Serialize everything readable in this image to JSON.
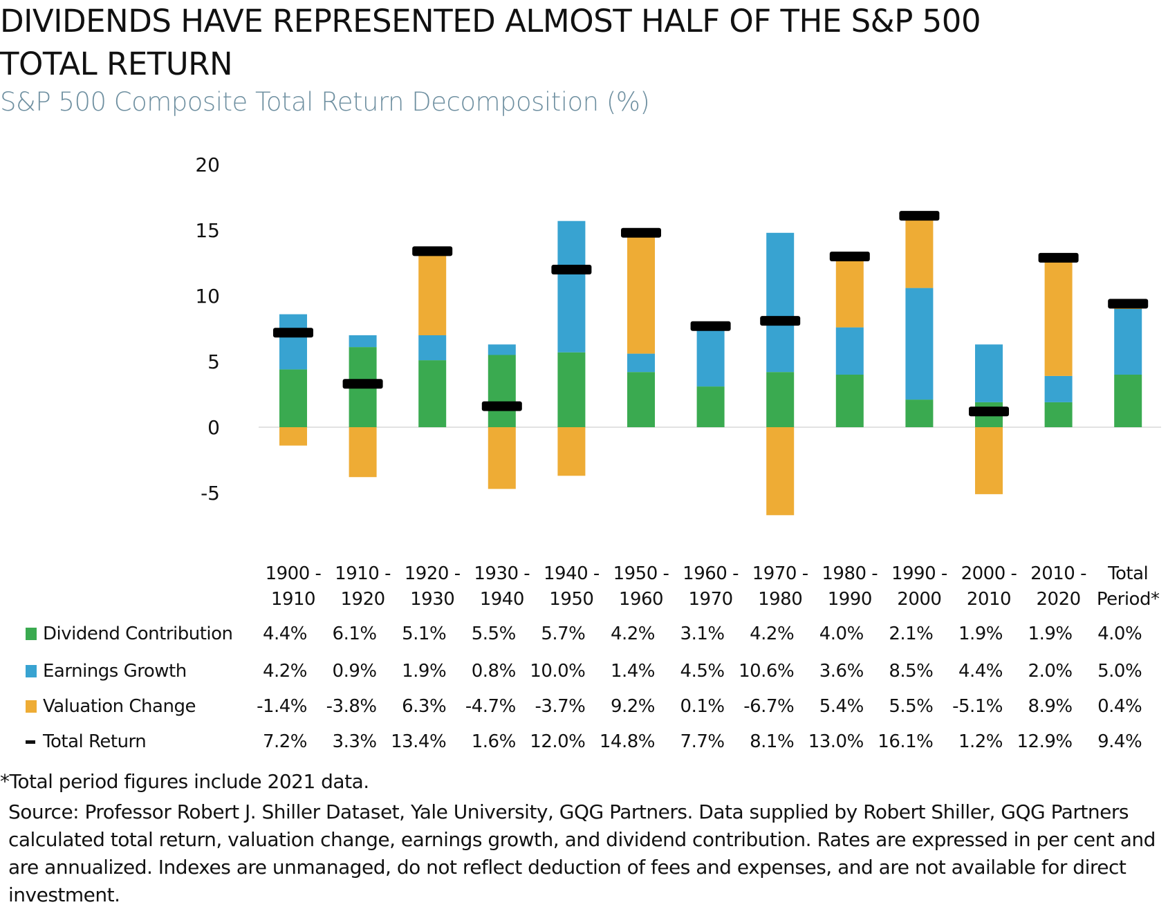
{
  "chart_data": {
    "type": "bar",
    "stacked": true,
    "title_line1": "DIVIDENDS HAVE REPRESENTED ALMOST HALF OF THE S&P 500",
    "title_line2": "TOTAL RETURN",
    "subtitle": "S&P 500 Composite Total Return Decomposition (%)",
    "ylim": [
      -5,
      20
    ],
    "yticks": [
      "20",
      "15",
      "10",
      "5",
      "0",
      "-5"
    ],
    "ytick_values": [
      20,
      15,
      10,
      5,
      0,
      -5
    ],
    "grid": false,
    "categories": [
      [
        "1900 -",
        "1910"
      ],
      [
        "1910 -",
        "1920"
      ],
      [
        "1920 -",
        "1930"
      ],
      [
        "1930 -",
        "1940"
      ],
      [
        "1940 -",
        "1950"
      ],
      [
        "1950 -",
        "1960"
      ],
      [
        "1960 -",
        "1970"
      ],
      [
        "1970 -",
        "1980"
      ],
      [
        "1980 -",
        "1990"
      ],
      [
        "1990 -",
        "2000"
      ],
      [
        "2000 -",
        "2010"
      ],
      [
        "2010 -",
        "2020"
      ],
      [
        "Total",
        "Period*"
      ]
    ],
    "series": [
      {
        "name": "Dividend Contribution",
        "color": "#3aaa50",
        "kind": "bar",
        "values": [
          4.4,
          6.1,
          5.1,
          5.5,
          5.7,
          4.2,
          3.1,
          4.2,
          4.0,
          2.1,
          1.9,
          1.9,
          4.0
        ],
        "labels": [
          "4.4%",
          "6.1%",
          "5.1%",
          "5.5%",
          "5.7%",
          "4.2%",
          "3.1%",
          "4.2%",
          "4.0%",
          "2.1%",
          "1.9%",
          "1.9%",
          "4.0%"
        ]
      },
      {
        "name": "Earnings Growth",
        "color": "#38a3d1",
        "kind": "bar",
        "values": [
          4.2,
          0.9,
          1.9,
          0.8,
          10.0,
          1.4,
          4.5,
          10.6,
          3.6,
          8.5,
          4.4,
          2.0,
          5.0
        ],
        "labels": [
          "4.2%",
          "0.9%",
          "1.9%",
          "0.8%",
          "10.0%",
          "1.4%",
          "4.5%",
          "10.6%",
          "3.6%",
          "8.5%",
          "4.4%",
          "2.0%",
          "5.0%"
        ]
      },
      {
        "name": "Valuation Change",
        "color": "#eeac35",
        "kind": "bar",
        "values": [
          -1.4,
          -3.8,
          6.3,
          -4.7,
          -3.7,
          9.2,
          0.1,
          -6.7,
          5.4,
          5.5,
          -5.1,
          8.9,
          0.4
        ],
        "labels": [
          "-1.4%",
          "-3.8%",
          "6.3%",
          "-4.7%",
          "-3.7%",
          "9.2%",
          "0.1%",
          "-6.7%",
          "5.4%",
          "5.5%",
          "-5.1%",
          "8.9%",
          "0.4%"
        ]
      },
      {
        "name": "Total Return",
        "color": "#000000",
        "kind": "marker",
        "values": [
          7.2,
          3.3,
          13.4,
          1.6,
          12.0,
          14.8,
          7.7,
          8.1,
          13.0,
          16.1,
          1.2,
          12.9,
          9.4
        ],
        "labels": [
          "7.2%",
          "3.3%",
          "13.4%",
          "1.6%",
          "12.0%",
          "14.8%",
          "7.7%",
          "8.1%",
          "13.0%",
          "16.1%",
          "1.2%",
          "12.9%",
          "9.4%"
        ]
      }
    ],
    "legend_placement": "bottom-table"
  },
  "footnote": "*Total period figures include 2021 data.",
  "source": "Source: Professor Robert J. Shiller Dataset, Yale University, GQG Partners. Data supplied by Robert Shiller, GQG Partners calculated total return, valuation change, earnings growth, and dividend contribution. Rates are expressed in per cent and are annualized. Indexes are unmanaged, do not reflect deduction of fees and expenses, and are not available for direct investment."
}
